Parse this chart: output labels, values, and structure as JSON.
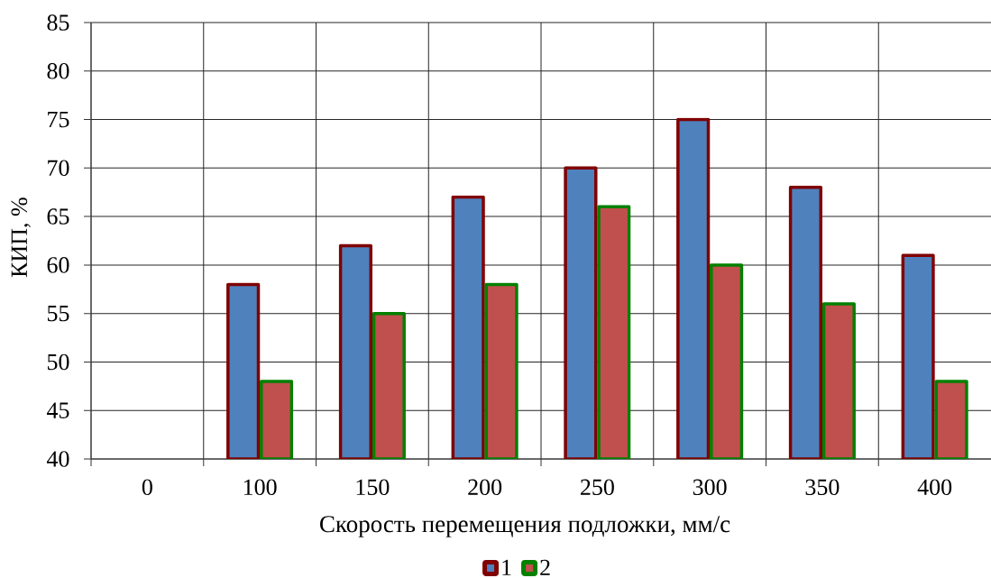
{
  "chart_data": {
    "type": "bar",
    "xlabel": "Скорость перемещения подложки, мм/с",
    "ylabel": "КИП, %",
    "categories": [
      "0",
      "100",
      "150",
      "200",
      "250",
      "300",
      "350",
      "400"
    ],
    "series": [
      {
        "name": "1",
        "color": "#4f81bd",
        "values": [
          null,
          58,
          62,
          67,
          70,
          75,
          68,
          61
        ]
      },
      {
        "name": "2",
        "color": "#c0504d",
        "values": [
          null,
          48,
          55,
          58,
          66,
          60,
          56,
          48
        ]
      }
    ],
    "ylim": [
      40,
      85
    ],
    "yticks": [
      40,
      45,
      50,
      55,
      60,
      65,
      70,
      75,
      80,
      85
    ],
    "grid": true,
    "legend": "bottom"
  }
}
